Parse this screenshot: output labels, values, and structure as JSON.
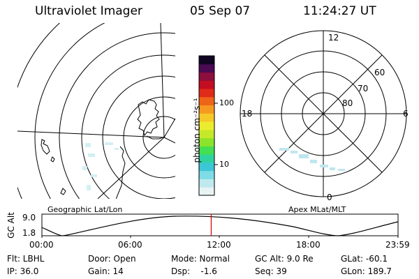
{
  "header": {
    "title": "Ultraviolet Imager",
    "date": "05 Sep 07",
    "time": "11:24:27 UT"
  },
  "colorbar": {
    "label": "photon cm⁻²s⁻¹",
    "ticks": [
      "100",
      "10"
    ],
    "colors": [
      "#e8f4f4",
      "#bfe9ee",
      "#7fdbe5",
      "#3cc7d6",
      "#2fd3a0",
      "#44df53",
      "#8be42a",
      "#c6e82b",
      "#ecec2f",
      "#f5c928",
      "#f59a20",
      "#ee6418",
      "#e02b18",
      "#c20d22",
      "#8c0f3d",
      "#4a0b52",
      "#110524"
    ]
  },
  "left_map": {
    "caption": "Geographic Lat/Lon"
  },
  "right_map": {
    "caption": "Apex MLat/MLT",
    "mlt_labels": [
      "12",
      "18",
      "6",
      "0"
    ],
    "lat_labels": [
      "60",
      "70",
      "80"
    ]
  },
  "timeline": {
    "ylabel": "GC Alt",
    "y_ticks": [
      "9.0",
      "1.8"
    ],
    "x_ticks": [
      "00:00",
      "06:00",
      "12:00",
      "18:00",
      "23:59"
    ],
    "marker_time": "11:24",
    "marker_color": "#d00000"
  },
  "info": {
    "row1": [
      "Flt: LBHL",
      "Door: Open",
      "Mode: Normal",
      "GC Alt: 9.0 Re",
      "GLat: -60.1"
    ],
    "row2": [
      "IP: 36.0",
      "Gain: 14",
      "Dsp:    -1.6",
      "Seq: 39",
      "GLon: 189.7"
    ]
  }
}
